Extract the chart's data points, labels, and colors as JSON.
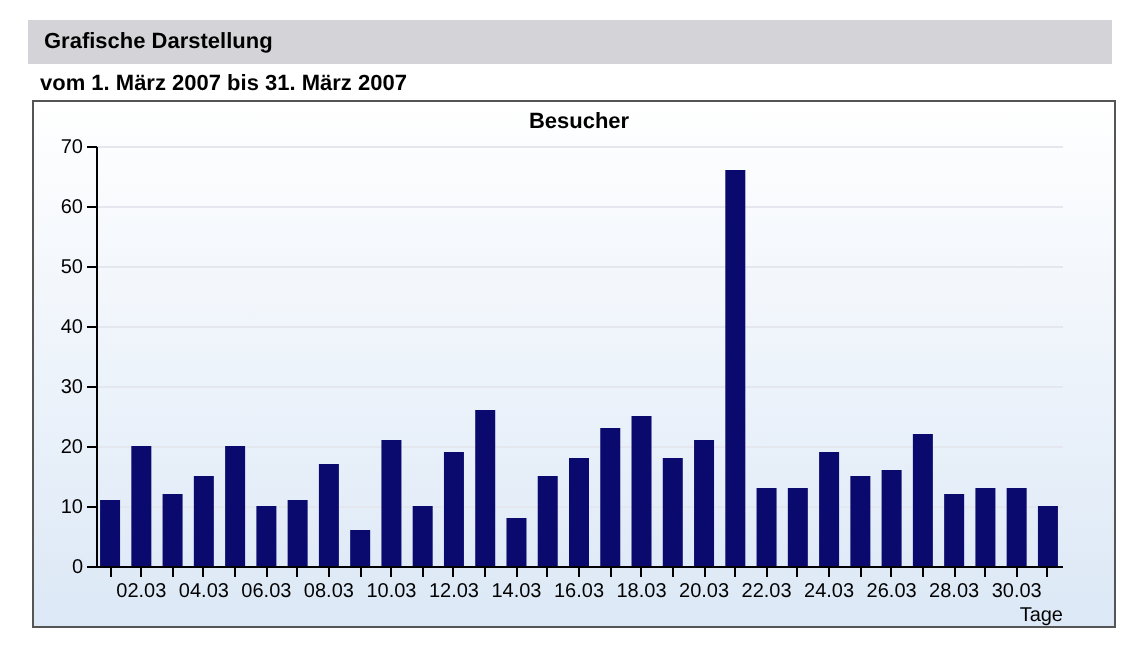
{
  "chart_data": {
    "type": "bar",
    "title": "Besucher",
    "subtitle": "vom 1. März 2007  bis 31. März 2007",
    "annotations": [
      "Grafische Darstellung"
    ],
    "xlabel": "Tage",
    "categories": [
      null,
      "02.03",
      null,
      "04.03",
      null,
      "06.03",
      null,
      "08.03",
      null,
      "10.03",
      null,
      "12.03",
      null,
      "14.03",
      null,
      "16.03",
      null,
      "18.03",
      null,
      "20.03",
      null,
      "22.03",
      null,
      "24.03",
      null,
      "26.03",
      null,
      "28.03",
      null,
      "30.03",
      null
    ],
    "values": [
      11,
      20,
      12,
      15,
      20,
      10,
      11,
      17,
      6,
      21,
      10,
      19,
      26,
      8,
      15,
      18,
      23,
      25,
      18,
      21,
      66,
      13,
      13,
      19,
      15,
      16,
      22,
      12,
      13,
      13,
      10
    ],
    "color": "#0a0a6e",
    "ylim": [
      0,
      70
    ],
    "yticks": [
      0,
      10,
      20,
      30,
      40,
      50,
      60,
      70
    ],
    "grid": "y"
  }
}
